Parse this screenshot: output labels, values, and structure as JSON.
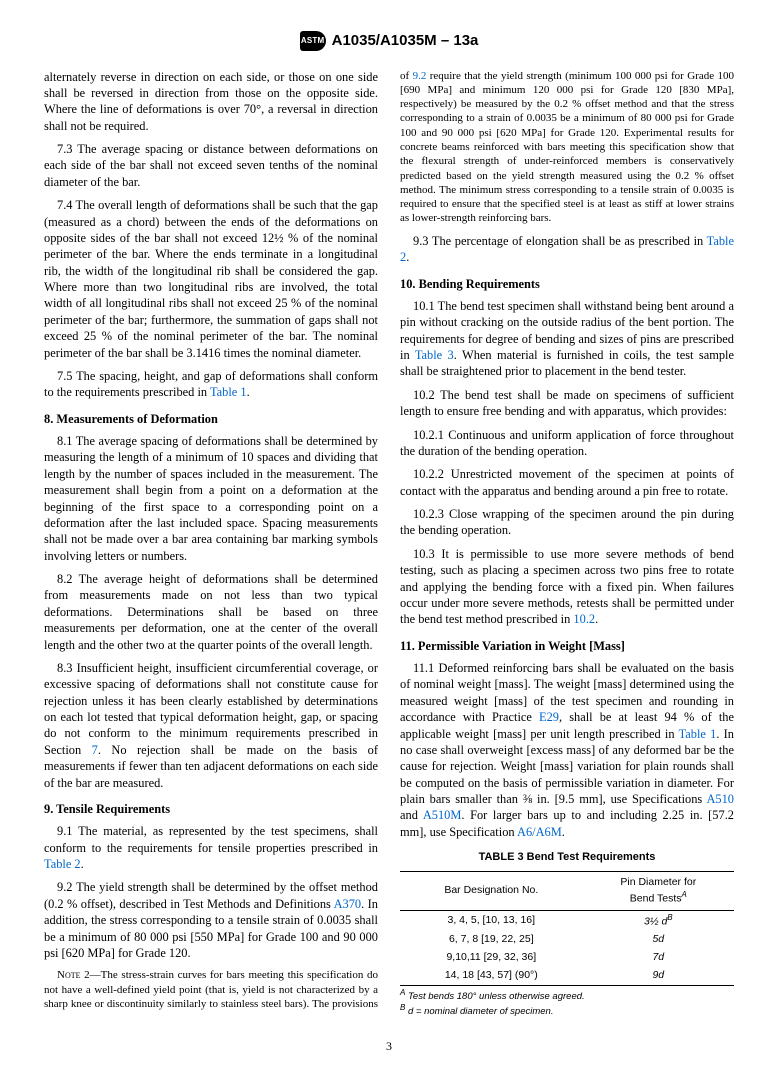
{
  "header": {
    "logo_text": "ASTM",
    "doc_title": "A1035/A1035M – 13a"
  },
  "page_number": "3",
  "col": {
    "p_cont": "alternately reverse in direction on each side, or those on one side shall be reversed in direction from those on the opposite side. Where the line of deformations is over 70°, a reversal in direction shall not be required.",
    "p7_3": "7.3 The average spacing or distance between deformations on each side of the bar shall not exceed seven tenths of the nominal diameter of the bar.",
    "p7_4": "7.4 The overall length of deformations shall be such that the gap (measured as a chord) between the ends of the deformations on opposite sides of the bar shall not exceed 12½ % of the nominal perimeter of the bar. Where the ends terminate in a longitudinal rib, the width of the longitudinal rib shall be considered the gap. Where more than two longitudinal ribs are involved, the total width of all longitudinal ribs shall not exceed 25 % of the nominal perimeter of the bar; furthermore, the summation of gaps shall not exceed 25 % of the nominal perimeter of the bar. The nominal perimeter of the bar shall be 3.1416 times the nominal diameter.",
    "p7_5_pre": "7.5 The spacing, height, and gap of deformations shall conform to the requirements prescribed in ",
    "p7_5_link": "Table 1",
    "p7_5_post": ".",
    "h8": "8. Measurements of Deformation",
    "p8_1": "8.1 The average spacing of deformations shall be determined by measuring the length of a minimum of 10 spaces and dividing that length by the number of spaces included in the measurement. The measurement shall begin from a point on a deformation at the beginning of the first space to a corresponding point on a deformation after the last included space. Spacing measurements shall not be made over a bar area containing bar marking symbols involving letters or numbers.",
    "p8_2": "8.2 The average height of deformations shall be determined from measurements made on not less than two typical deformations. Determinations shall be based on three measurements per deformation, one at the center of the overall length and the other two at the quarter points of the overall length.",
    "p8_3_pre": "8.3 Insufficient height, insufficient circumferential coverage, or excessive spacing of deformations shall not constitute cause for rejection unless it has been clearly established by determinations on each lot tested that typical deformation height, gap, or spacing do not conform to the minimum requirements prescribed in Section ",
    "p8_3_link": "7",
    "p8_3_post": ". No rejection shall be made on the basis of measurements if fewer than ten adjacent deformations on each side of the bar are measured.",
    "h9": "9. Tensile Requirements",
    "p9_1_pre": "9.1 The material, as represented by the test specimens, shall conform to the requirements for tensile properties prescribed in ",
    "p9_1_link": "Table 2",
    "p9_1_post": ".",
    "p9_2_pre": "9.2 The yield strength shall be determined by the offset method (0.2 % offset), described in Test Methods and Definitions ",
    "p9_2_link": "A370",
    "p9_2_post": ". In addition, the stress corresponding to a tensile strain of 0.0035 shall be a minimum of 80 000 psi [550 MPa] for Grade 100 and 90 000 psi [620 MPa] for Grade 120.",
    "note2_label": "Note 2—",
    "note2_a": "The stress-strain curves for bars meeting this specification do not have a well-defined yield point (that is, yield is not characterized by a sharp knee or discontinuity similarly to stainless steel bars). The provisions of ",
    "note2_link": "9.2",
    "note2_b": " require that the yield strength (minimum 100 000 psi for Grade 100 [690 MPa] and minimum 120 000 psi for Grade 120 [830 MPa], respectively) be measured by the 0.2 % offset method and that the stress corresponding to a strain of 0.0035 be a minimum of 80 000 psi for Grade 100 and 90 000 psi [620 MPa] for Grade 120. Experimental results for concrete beams reinforced with bars meeting this specification show that the flexural strength of under-reinforced members is conservatively predicted based on the yield strength measured using the 0.2 % offset method. The minimum stress corresponding to a tensile strain of 0.0035 is required to ensure that the specified steel is at least as stiff at lower strains as lower-strength reinforcing bars.",
    "p9_3_pre": "9.3 The percentage of elongation shall be as prescribed in ",
    "p9_3_link": "Table 2",
    "p9_3_post": ".",
    "h10": "10. Bending Requirements",
    "p10_1_pre": "10.1 The bend test specimen shall withstand being bent around a pin without cracking on the outside radius of the bent portion. The requirements for degree of bending and sizes of pins are prescribed in ",
    "p10_1_link": "Table 3",
    "p10_1_post": ". When material is furnished in coils, the test sample shall be straightened prior to placement in the bend tester.",
    "p10_2": "10.2 The bend test shall be made on specimens of sufficient length to ensure free bending and with apparatus, which provides:",
    "p10_2_1": "10.2.1 Continuous and uniform application of force throughout the duration of the bending operation.",
    "p10_2_2": "10.2.2 Unrestricted movement of the specimen at points of contact with the apparatus and bending around a pin free to rotate.",
    "p10_2_3": "10.2.3 Close wrapping of the specimen around the pin during the bending operation.",
    "p10_3_pre": "10.3 It is permissible to use more severe methods of bend testing, such as placing a specimen across two pins free to rotate and applying the bending force with a fixed pin. When failures occur under more severe methods, retests shall be permitted under the bend test method prescribed in ",
    "p10_3_link": "10.2",
    "p10_3_post": ".",
    "h11": "11. Permissible Variation in Weight [Mass]",
    "p11_1_a": "11.1 Deformed reinforcing bars shall be evaluated on the basis of nominal weight [mass]. The weight [mass] determined using the measured weight [mass] of the test specimen and rounding in accordance with Practice ",
    "p11_1_link1": "E29",
    "p11_1_b": ", shall be at least 94 % of the applicable weight [mass] per unit length prescribed in ",
    "p11_1_link2": "Table 1",
    "p11_1_c": ". In no case shall overweight [excess mass] of any deformed bar be the cause for rejection. Weight [mass] variation for plain rounds shall be computed on the basis of permissible variation in diameter. For plain bars smaller than ⅜ in. [9.5 mm], use Specifications ",
    "p11_1_link3": "A510",
    "p11_1_d": " and ",
    "p11_1_link4": "A510M",
    "p11_1_e": ". For larger bars up to and including 2.25 in. [57.2 mm], use Specification ",
    "p11_1_link5": "A6/A6M",
    "p11_1_f": "."
  },
  "table3": {
    "title": "TABLE 3 Bend Test Requirements",
    "h1": "Bar Designation No.",
    "h2_a": "Pin Diameter for",
    "h2_b": "Bend Tests",
    "rows": [
      {
        "c1": "3, 4, 5, [10, 13, 16]",
        "c2": "3½ d",
        "sup": "B"
      },
      {
        "c1": "6, 7, 8 [19, 22, 25]",
        "c2": "5d",
        "sup": ""
      },
      {
        "c1": "9,10,11 [29, 32, 36]",
        "c2": "7d",
        "sup": ""
      },
      {
        "c1": "14, 18 [43, 57] (90°)",
        "c2": "9d",
        "sup": ""
      }
    ],
    "fnA_sup": "A",
    "fnA": " Test bends 180° unless otherwise agreed.",
    "fnB_sup": "B",
    "fnB_a": " ",
    "fnB_d": "d",
    "fnB_b": " = nominal diameter of specimen."
  }
}
